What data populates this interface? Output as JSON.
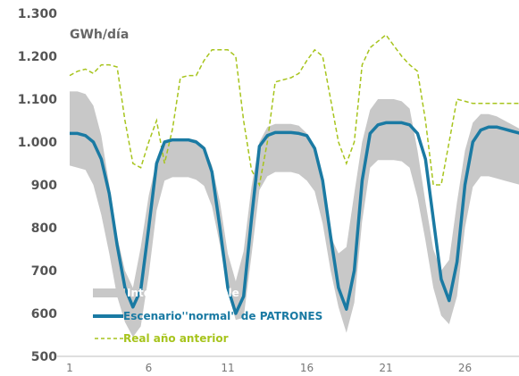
{
  "chart_data": {
    "type": "line",
    "unit_label": "GWh/día",
    "y_ticks": [
      "1.300",
      "1.200",
      "1.100",
      "1.000",
      "900",
      "800",
      "700",
      "600",
      "500"
    ],
    "ylim": [
      500,
      1300
    ],
    "x_ticks": [
      "1",
      "6",
      "11",
      "16",
      "21",
      "26"
    ],
    "xlim": [
      1,
      30
    ],
    "grid": false,
    "legend_position": "bottom-left",
    "x": [
      1,
      1.5,
      2,
      2.5,
      3,
      3.5,
      4,
      4.5,
      5,
      5.5,
      6,
      6.5,
      7,
      7.5,
      8,
      8.5,
      9,
      9.5,
      10,
      10.5,
      11,
      11.5,
      12,
      12.5,
      13,
      13.5,
      14,
      14.5,
      15,
      15.5,
      16,
      16.5,
      17,
      17.5,
      18,
      18.5,
      19,
      19.5,
      20,
      20.5,
      21,
      21.5,
      22,
      22.5,
      23,
      23.5,
      24,
      24.5,
      25,
      25.5,
      26,
      26.5,
      27,
      27.5,
      28,
      28.5,
      29,
      29.5,
      30
    ],
    "series": [
      {
        "name": "Intervalo Probable",
        "kind": "band",
        "color": "#c8c8c8",
        "upper": [
          1118,
          1118,
          1112,
          1085,
          1015,
          900,
          780,
          700,
          660,
          755,
          875,
          955,
          1000,
          1008,
          1008,
          1008,
          1005,
          990,
          945,
          860,
          740,
          675,
          745,
          895,
          1000,
          1035,
          1042,
          1042,
          1042,
          1038,
          1020,
          985,
          890,
          780,
          740,
          755,
          880,
          1000,
          1075,
          1100,
          1100,
          1100,
          1095,
          1078,
          980,
          860,
          750,
          700,
          725,
          860,
          980,
          1045,
          1065,
          1065,
          1060,
          1050,
          1040,
          1030,
          1030
        ],
        "lower": [
          945,
          940,
          935,
          900,
          830,
          740,
          640,
          580,
          545,
          570,
          690,
          840,
          910,
          918,
          918,
          918,
          912,
          898,
          850,
          760,
          650,
          585,
          590,
          735,
          888,
          920,
          930,
          930,
          930,
          925,
          910,
          885,
          810,
          700,
          615,
          555,
          625,
          815,
          940,
          958,
          958,
          958,
          955,
          940,
          870,
          770,
          660,
          595,
          575,
          640,
          800,
          895,
          920,
          920,
          915,
          910,
          905,
          900,
          900
        ]
      },
      {
        "name": "Escenario''normal'' de PATRONES",
        "kind": "line",
        "color": "#1a7aa3",
        "values": [
          1020,
          1020,
          1015,
          1000,
          960,
          880,
          760,
          660,
          615,
          655,
          800,
          950,
          1000,
          1005,
          1005,
          1005,
          1000,
          985,
          930,
          800,
          660,
          600,
          640,
          820,
          990,
          1015,
          1022,
          1022,
          1022,
          1020,
          1015,
          985,
          910,
          780,
          660,
          610,
          700,
          910,
          1020,
          1040,
          1045,
          1045,
          1045,
          1040,
          1020,
          960,
          820,
          680,
          630,
          720,
          900,
          1000,
          1028,
          1035,
          1035,
          1030,
          1025,
          1020,
          1020
        ]
      },
      {
        "name": "Real año anterior",
        "kind": "dashed-line",
        "color": "#a7c41d",
        "values": [
          1155,
          1165,
          1170,
          1160,
          1180,
          1180,
          1175,
          1050,
          950,
          940,
          1000,
          1050,
          950,
          1030,
          1150,
          1155,
          1155,
          1190,
          1215,
          1215,
          1215,
          1200,
          1050,
          935,
          900,
          1000,
          1140,
          1145,
          1150,
          1160,
          1190,
          1215,
          1200,
          1100,
          1000,
          950,
          1000,
          1180,
          1220,
          1235,
          1250,
          1225,
          1200,
          1180,
          1165,
          1050,
          900,
          900,
          1000,
          1100,
          1095,
          1090,
          1090,
          1090,
          1090,
          1090,
          1090,
          1090,
          1090
        ]
      }
    ]
  }
}
